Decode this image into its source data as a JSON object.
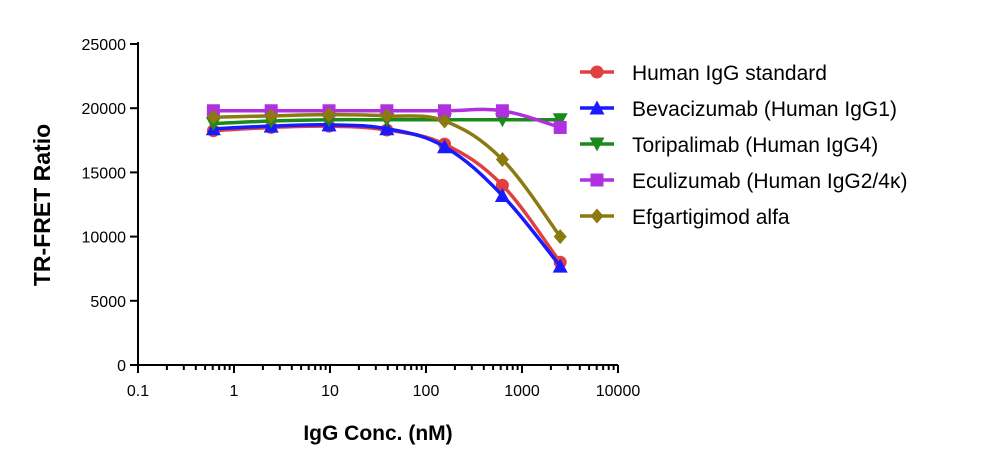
{
  "chart_data": {
    "type": "line",
    "xlabel": "IgG Conc. (nM)",
    "ylabel": "TR-FRET Ratio",
    "xscale": "log",
    "xlim": [
      0.1,
      10000
    ],
    "ylim": [
      0,
      25000
    ],
    "x_ticks": [
      "0.1",
      "1",
      "10",
      "100",
      "1000",
      "10000"
    ],
    "y_ticks": [
      "0",
      "5000",
      "10000",
      "15000",
      "20000",
      "25000"
    ],
    "legend_position": "right",
    "grid": false,
    "series": [
      {
        "name": "Human IgG standard",
        "color": "#e04040",
        "marker": "circle",
        "x": [
          0.61,
          2.44,
          9.77,
          39.1,
          156,
          625,
          2500
        ],
        "y": [
          18250,
          18500,
          18600,
          18300,
          17200,
          14000,
          8000
        ]
      },
      {
        "name": "Bevacizumab (Human IgG1)",
        "color": "#1a1aff",
        "marker": "triangle-up",
        "x": [
          0.61,
          2.44,
          9.77,
          39.1,
          156,
          625,
          2500
        ],
        "y": [
          18400,
          18600,
          18700,
          18400,
          17000,
          13200,
          7700
        ]
      },
      {
        "name": "Toripalimab (Human IgG4)",
        "color": "#1a8a1a",
        "marker": "triangle-down",
        "x": [
          0.61,
          2.44,
          9.77,
          39.1,
          156,
          625,
          2500
        ],
        "y": [
          18800,
          19000,
          19100,
          19100,
          19100,
          19100,
          19100
        ]
      },
      {
        "name": "Eculizumab (Human IgG2/4κ)",
        "color": "#b030e0",
        "marker": "square",
        "x": [
          0.61,
          2.44,
          9.77,
          39.1,
          156,
          625,
          2500
        ],
        "y": [
          19800,
          19800,
          19800,
          19800,
          19800,
          19800,
          18500
        ]
      },
      {
        "name": "Efgartigimod alfa",
        "color": "#8a7a10",
        "marker": "diamond",
        "x": [
          0.61,
          2.44,
          9.77,
          39.1,
          156,
          625,
          2500
        ],
        "y": [
          19300,
          19400,
          19500,
          19400,
          19000,
          16000,
          10000
        ]
      }
    ]
  }
}
